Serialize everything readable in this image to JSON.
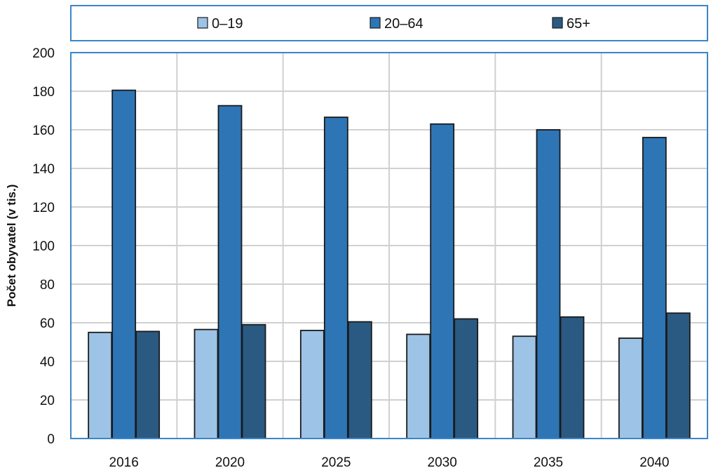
{
  "chart_data": {
    "type": "bar",
    "categories": [
      "2016",
      "2020",
      "2025",
      "2030",
      "2035",
      "2040"
    ],
    "series": [
      {
        "name": "0–19",
        "color": "#9DC3E6",
        "values": [
          55,
          56.5,
          56,
          54,
          53,
          52
        ]
      },
      {
        "name": "20–64",
        "color": "#2E75B6",
        "values": [
          180.5,
          172.5,
          166.5,
          163,
          160,
          156
        ]
      },
      {
        "name": "65+",
        "color": "#2A5A82",
        "values": [
          55.5,
          59,
          60.5,
          62,
          63,
          65
        ]
      }
    ],
    "title": "",
    "xlabel": "",
    "ylabel": "Počet obyvatel (v tis.)",
    "ylim": [
      0,
      200
    ],
    "yticks": [
      "0",
      "20",
      "40",
      "60",
      "80",
      "100",
      "120",
      "140",
      "160",
      "180",
      "200"
    ],
    "grid": true,
    "legend_position": "top"
  }
}
